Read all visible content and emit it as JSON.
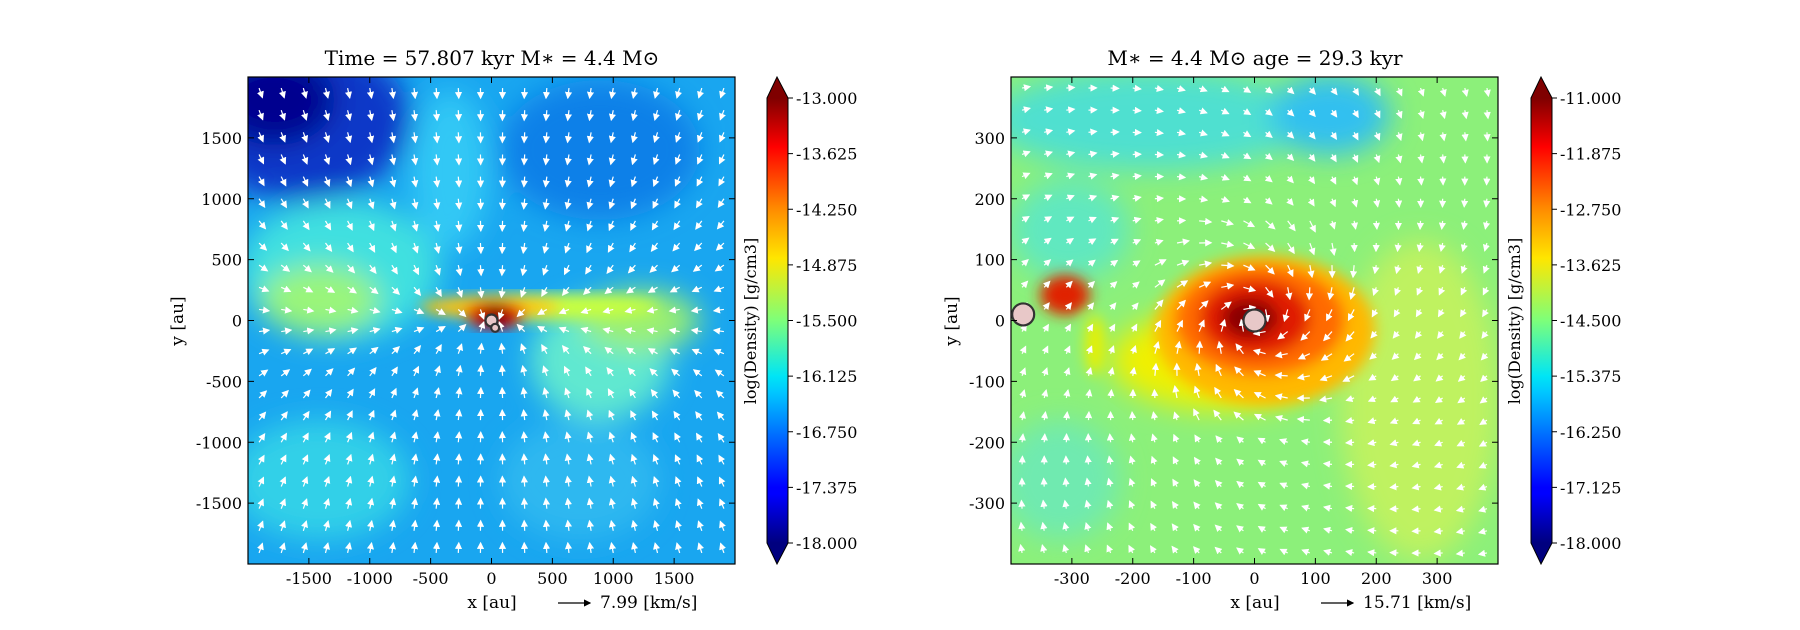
{
  "chart_data": [
    {
      "type": "heatmap",
      "title": "Time = 57.807 kyr    M$_*$ = 4.4 M$_\\odot$",
      "title_display": "Time = 57.807 kyr    M∗ = 4.4 M⊙",
      "xlabel": "x [au]",
      "ylabel": "y [au]",
      "xlim": [
        -2000,
        2000
      ],
      "ylim": [
        -2000,
        2000
      ],
      "xticks": [
        -1500,
        -1000,
        -500,
        0,
        500,
        1000,
        1500
      ],
      "xtick_labels": [
        "-1500",
        "-1000",
        "-500",
        "0",
        "500",
        "1000",
        "1500"
      ],
      "yticks": [
        1500,
        1000,
        500,
        0,
        -500,
        -1000,
        -1500
      ],
      "ytick_labels": [
        "1500",
        "1000",
        "500",
        "0",
        "-500",
        "-1000",
        "-1500"
      ],
      "colorbar": {
        "label": "log(Density) [g/cm3]",
        "range": [
          -18.0,
          -13.0
        ],
        "ticks": [
          -13.0,
          -13.625,
          -14.25,
          -14.875,
          -15.5,
          -16.125,
          -16.75,
          -17.375,
          -18.0
        ],
        "tick_labels": [
          "-13.000",
          "-13.625",
          "-14.250",
          "-14.875",
          "-15.500",
          "-16.125",
          "-16.750",
          "-17.375",
          "-18.000"
        ],
        "colormap": "jet"
      },
      "velocity_key": "7.99 [km/s]",
      "stars": [
        {
          "x": 0,
          "y": 0
        },
        {
          "x": 30,
          "y": -60
        }
      ],
      "features": [
        {
          "kind": "disk",
          "x0": -200,
          "x1": 1000,
          "y": 50,
          "log_density": -14.5
        },
        {
          "kind": "core",
          "x": 50,
          "y": 0,
          "log_density": -13.2
        },
        {
          "kind": "low_density_region",
          "x": -1700,
          "y": 1700,
          "log_density": -17.5
        }
      ],
      "grid": false
    },
    {
      "type": "heatmap",
      "title": "M$_*$ = 4.4 M$_\\odot$        age = 29.3 kyr",
      "title_display": "M∗ = 4.4 M⊙        age = 29.3 kyr",
      "xlabel": "x [au]",
      "ylabel": "y [au]",
      "xlim": [
        -400,
        400
      ],
      "ylim": [
        -400,
        400
      ],
      "xticks": [
        -300,
        -200,
        -100,
        0,
        100,
        200,
        300
      ],
      "xtick_labels": [
        "-300",
        "-200",
        "-100",
        "0",
        "100",
        "200",
        "300"
      ],
      "yticks": [
        300,
        200,
        100,
        0,
        -100,
        -200,
        -300
      ],
      "ytick_labels": [
        "300",
        "200",
        "100",
        "0",
        "-100",
        "-200",
        "-300"
      ],
      "colorbar": {
        "label": "log(Density) [g/cm3]",
        "range": [
          -18.0,
          -11.0
        ],
        "ticks": [
          -11.0,
          -11.875,
          -12.75,
          -13.625,
          -14.5,
          -15.375,
          -16.25,
          -17.125,
          -18.0
        ],
        "tick_labels": [
          "-11.000",
          "-11.875",
          "-12.750",
          "-13.625",
          "-14.500",
          "-15.375",
          "-16.250",
          "-17.125",
          "-18.000"
        ],
        "colormap": "jet"
      },
      "velocity_key": "15.71 [km/s]",
      "stars": [
        {
          "x": 0,
          "y": 0
        },
        {
          "x": -380,
          "y": 10
        }
      ],
      "features": [
        {
          "kind": "spiral_disk",
          "x": 20,
          "y": 0,
          "log_density": -11.8
        },
        {
          "kind": "secondary_clump",
          "x": -330,
          "y": 40,
          "log_density": -12.0
        }
      ],
      "grid": false
    }
  ]
}
